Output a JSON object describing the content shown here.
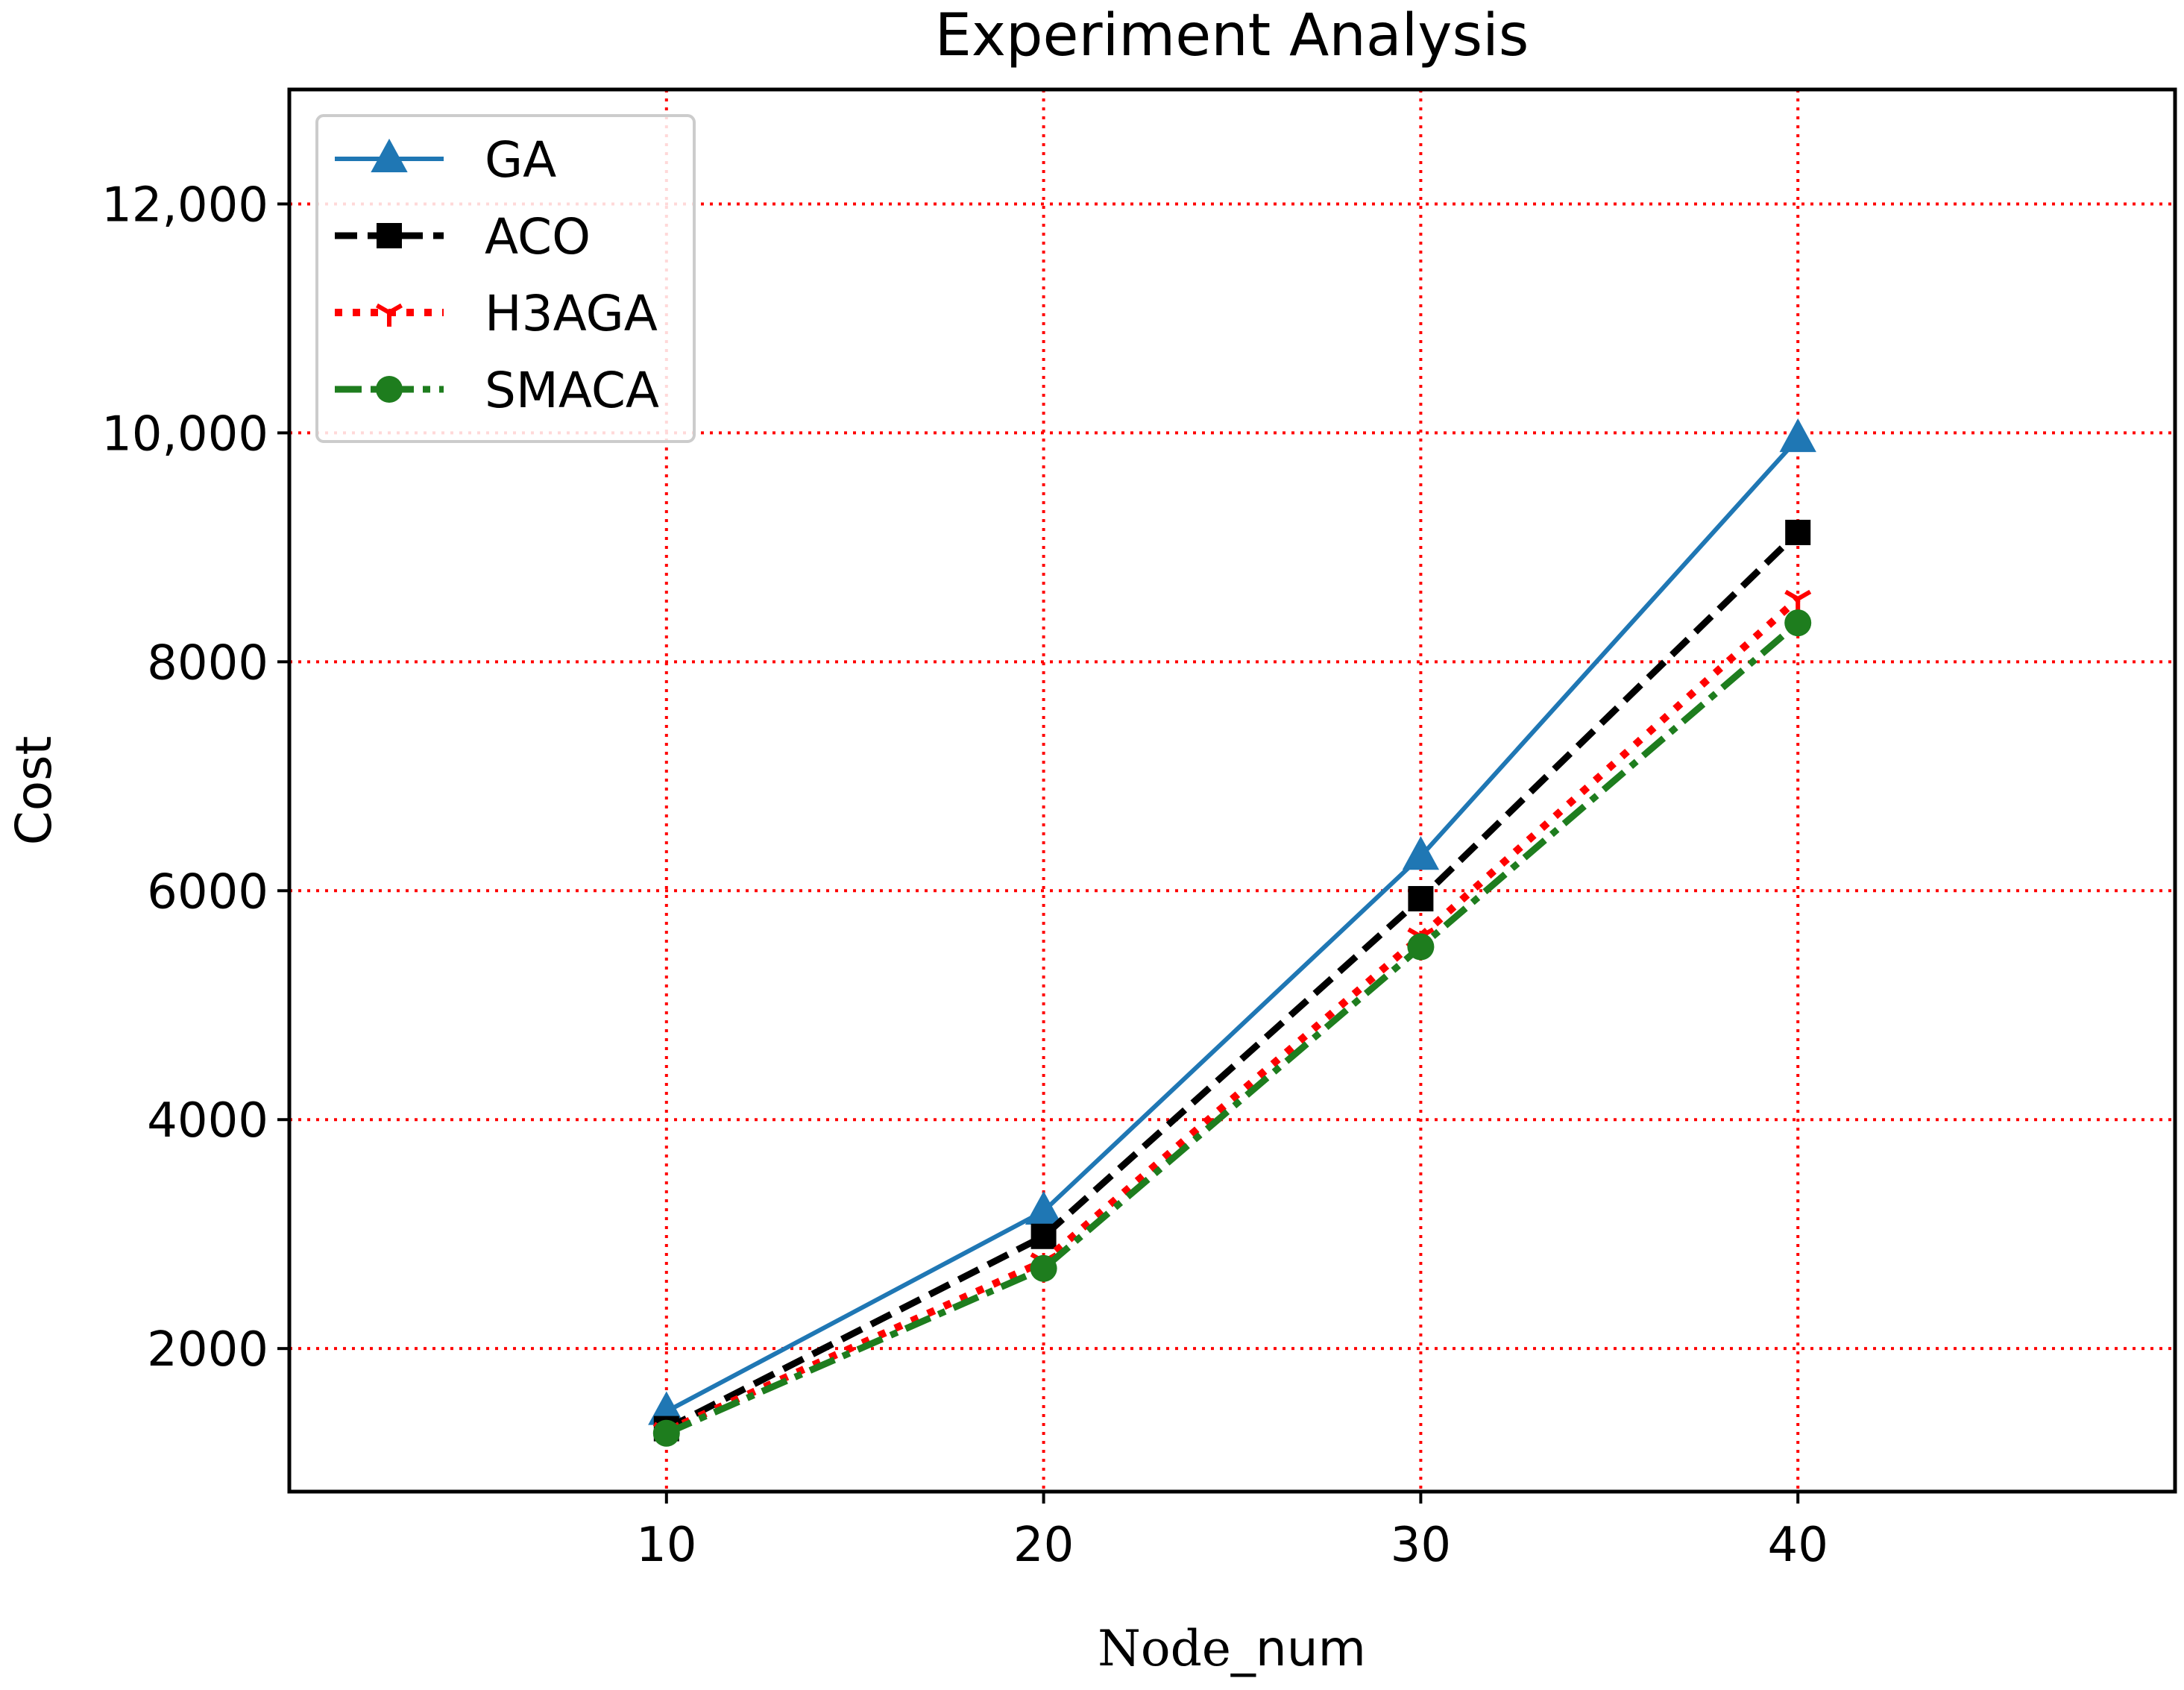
{
  "chart_data": {
    "type": "line",
    "title": "Experiment Analysis",
    "xlabel_parts": [
      "Node",
      "_num"
    ],
    "ylabel": "Cost",
    "x": [
      10,
      20,
      30,
      40
    ],
    "xlim": [
      0,
      50
    ],
    "ylim": [
      750,
      13000
    ],
    "xticks": [
      10,
      20,
      30,
      40
    ],
    "xtick_labels": [
      "10",
      "20",
      "30",
      "40"
    ],
    "yticks": [
      2000,
      4000,
      6000,
      8000,
      10000,
      12000
    ],
    "ytick_labels": [
      "2000",
      "4000",
      "6000",
      "8000",
      "10,000",
      "12,000"
    ],
    "grid": true,
    "grid_color": "#ff0000",
    "legend_position": "top-left",
    "series": [
      {
        "name": "GA",
        "values": [
          1450,
          3200,
          6300,
          9950
        ],
        "color": "#1f77b4",
        "marker": "triangle",
        "line_style": "solid"
      },
      {
        "name": "ACO",
        "values": [
          1300,
          2980,
          5930,
          9130
        ],
        "color": "#000000",
        "marker": "square",
        "line_style": "dashed"
      },
      {
        "name": "H3AGA",
        "values": [
          1280,
          2760,
          5600,
          8550
        ],
        "color": "#ff0000",
        "marker": "tri-down",
        "line_style": "dotted"
      },
      {
        "name": "SMACA",
        "values": [
          1260,
          2700,
          5510,
          8340
        ],
        "color": "#1e7d1e",
        "marker": "circle",
        "line_style": "dashdot"
      }
    ]
  }
}
